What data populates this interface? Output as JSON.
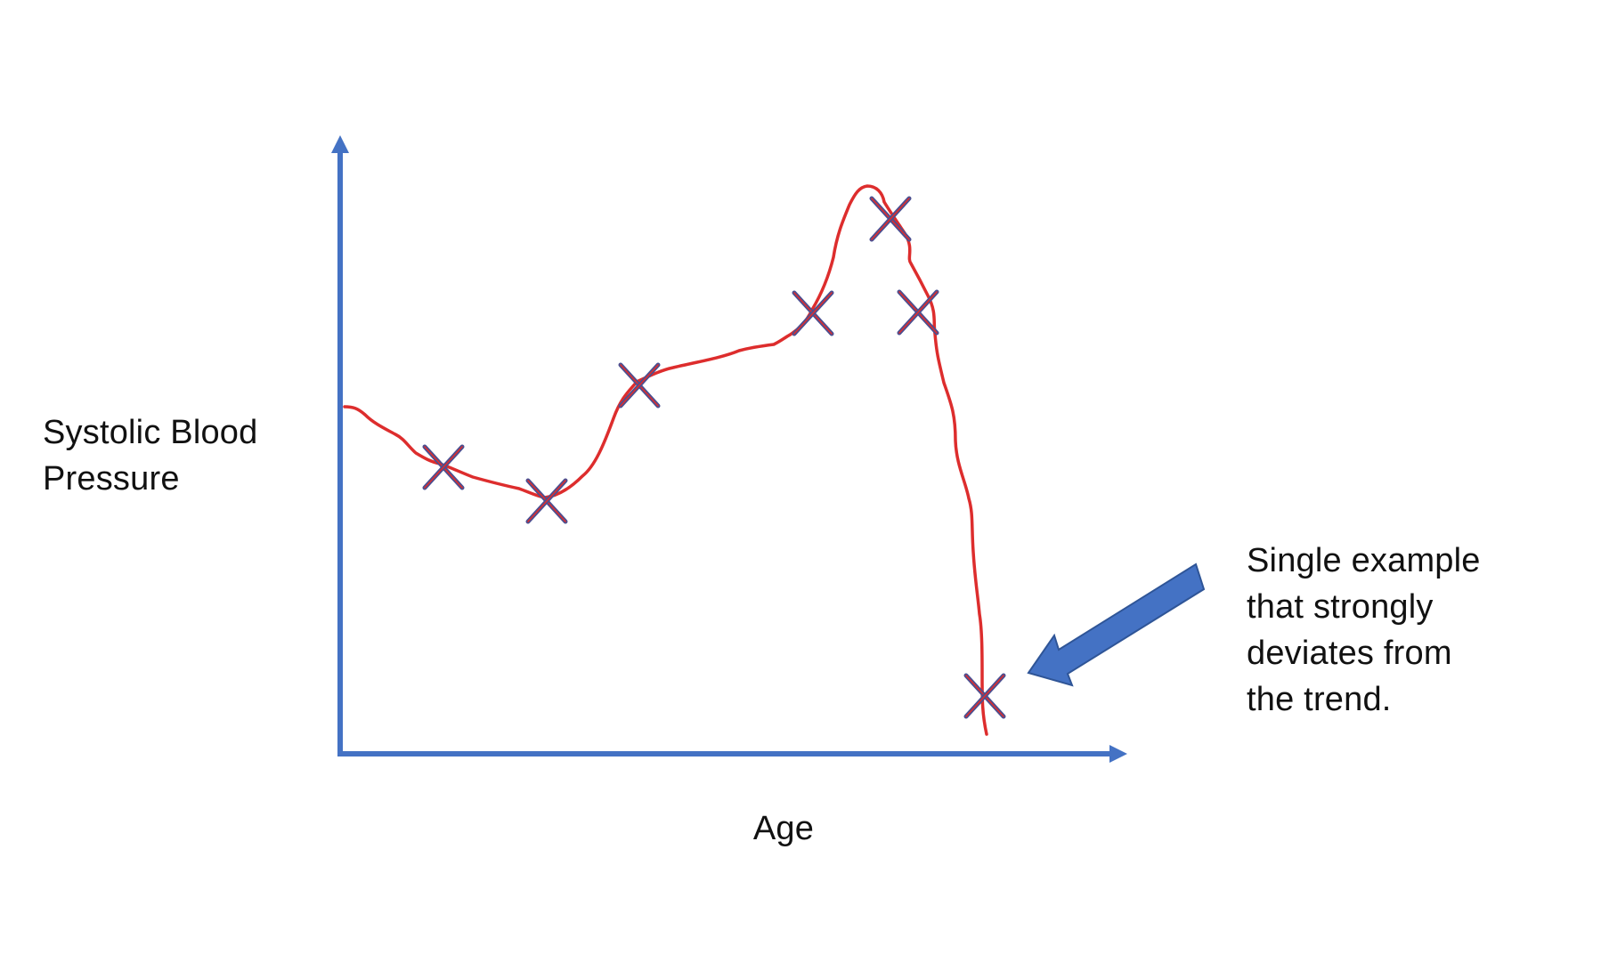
{
  "chart_data": {
    "type": "line",
    "title": "",
    "xlabel": "Age",
    "ylabel_lines": [
      "Systolic Blood",
      "Pressure"
    ],
    "annotation_lines": [
      "Single example",
      "that strongly",
      "deviates from",
      "the trend."
    ],
    "x": [],
    "series": [
      {
        "name": "",
        "values": []
      }
    ],
    "grid": false,
    "legend": "none",
    "tick_labels": false,
    "colors": {
      "axis": "#4472c4",
      "trend_line": "#dd2d2d",
      "marker_outline": "#4a4f91",
      "marker_center": "#dd2d2d",
      "arrow": "#4472c4",
      "text": "#111111"
    }
  }
}
